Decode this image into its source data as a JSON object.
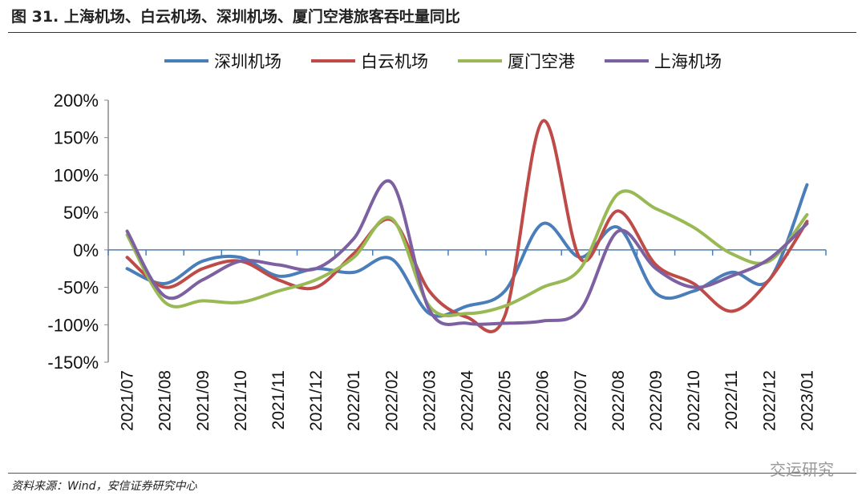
{
  "title": "图 31. 上海机场、白云机场、深圳机场、厦门空港旅客吞吐量同比",
  "source": "资料来源：Wind，安信证券研究中心",
  "watermark": "交运研究",
  "chart_data": {
    "type": "line",
    "title": "",
    "xlabel": "",
    "ylabel": "",
    "ylim": [
      -150,
      200
    ],
    "yticks": [
      "200%",
      "150%",
      "100%",
      "50%",
      "0%",
      "-50%",
      "-100%",
      "-150%"
    ],
    "ytick_values": [
      200,
      150,
      100,
      50,
      0,
      -50,
      -100,
      -150
    ],
    "legend": "top",
    "grid": false,
    "categories": [
      "2021/07",
      "2021/08",
      "2021/09",
      "2021/10",
      "2021/11",
      "2021/12",
      "2022/01",
      "2022/02",
      "2022/03",
      "2022/04",
      "2022/05",
      "2022/06",
      "2022/07",
      "2022/08",
      "2022/09",
      "2022/10",
      "2022/11",
      "2022/12",
      "2023/01"
    ],
    "series": [
      {
        "name": "深圳机场",
        "color": "#4a7ebb",
        "values": [
          -25,
          -45,
          -15,
          -10,
          -35,
          -25,
          -30,
          -12,
          -85,
          -75,
          -55,
          35,
          -10,
          30,
          -58,
          -55,
          -30,
          -40,
          87
        ]
      },
      {
        "name": "白云机场",
        "color": "#be4b48",
        "values": [
          -10,
          -50,
          -25,
          -15,
          -40,
          -50,
          -5,
          40,
          -55,
          -90,
          -88,
          172,
          -12,
          52,
          -20,
          -45,
          -82,
          -40,
          38
        ]
      },
      {
        "name": "厦门空港",
        "color": "#98b954",
        "values": [
          20,
          -70,
          -68,
          -70,
          -55,
          -40,
          -10,
          42,
          -75,
          -85,
          -75,
          -50,
          -25,
          75,
          55,
          30,
          -5,
          -15,
          47
        ]
      },
      {
        "name": "上海机场",
        "color": "#7d60a0",
        "values": [
          25,
          -62,
          -40,
          -15,
          -20,
          -25,
          15,
          90,
          -80,
          -98,
          -98,
          -95,
          -80,
          25,
          -25,
          -50,
          -35,
          -12,
          35
        ]
      }
    ]
  }
}
